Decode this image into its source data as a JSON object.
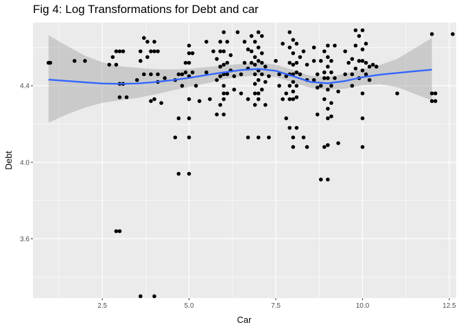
{
  "chart_data": {
    "type": "scatter",
    "title": "Fig 4: Log Transformations for Debt and car",
    "xlabel": "Car",
    "ylabel": "Debt",
    "xlim": [
      0.5,
      12.7
    ],
    "ylim": [
      3.29,
      4.73
    ],
    "x_ticks": [
      2.5,
      5.0,
      7.5,
      10.0,
      12.5
    ],
    "x_tick_labels": [
      "2.5",
      "5.0",
      "7.5",
      "10.0",
      "12.5"
    ],
    "y_ticks": [
      3.6,
      4.0,
      4.4
    ],
    "y_tick_labels": [
      "3.6",
      "4.0",
      "4.4"
    ],
    "grid": true,
    "background": "#ebebeb",
    "point_color": "#000000",
    "smooth_color": "#3366ff",
    "band_color": "#999999",
    "points": [
      [
        0.95,
        4.52
      ],
      [
        1.0,
        4.52
      ],
      [
        1.7,
        4.53
      ],
      [
        2.0,
        4.53
      ],
      [
        2.7,
        4.51
      ],
      [
        2.8,
        4.55
      ],
      [
        2.9,
        4.58
      ],
      [
        2.9,
        4.51
      ],
      [
        2.9,
        3.64
      ],
      [
        3.0,
        3.64
      ],
      [
        3.0,
        4.58
      ],
      [
        3.0,
        4.41
      ],
      [
        3.0,
        4.34
      ],
      [
        3.1,
        4.58
      ],
      [
        3.1,
        4.41
      ],
      [
        3.2,
        4.34
      ],
      [
        3.5,
        4.43
      ],
      [
        3.6,
        4.53
      ],
      [
        3.6,
        4.58
      ],
      [
        3.6,
        3.3
      ],
      [
        3.7,
        4.65
      ],
      [
        3.7,
        4.46
      ],
      [
        3.8,
        4.55
      ],
      [
        3.8,
        4.63
      ],
      [
        3.9,
        4.46
      ],
      [
        3.9,
        4.58
      ],
      [
        3.9,
        4.32
      ],
      [
        4.0,
        4.58
      ],
      [
        4.0,
        4.33
      ],
      [
        4.0,
        4.63
      ],
      [
        4.0,
        3.3
      ],
      [
        4.1,
        4.58
      ],
      [
        4.1,
        4.46
      ],
      [
        4.1,
        4.42
      ],
      [
        4.2,
        4.31
      ],
      [
        4.3,
        4.44
      ],
      [
        4.6,
        4.43
      ],
      [
        4.6,
        4.13
      ],
      [
        4.7,
        4.23
      ],
      [
        4.7,
        3.94
      ],
      [
        4.7,
        4.46
      ],
      [
        4.8,
        4.46
      ],
      [
        4.8,
        4.4
      ],
      [
        4.9,
        4.47
      ],
      [
        4.9,
        4.52
      ],
      [
        5.0,
        4.57
      ],
      [
        5.0,
        4.61
      ],
      [
        5.0,
        4.52
      ],
      [
        5.0,
        4.45
      ],
      [
        5.0,
        4.33
      ],
      [
        5.0,
        4.23
      ],
      [
        5.0,
        4.13
      ],
      [
        5.0,
        3.94
      ],
      [
        5.1,
        4.57
      ],
      [
        5.1,
        4.47
      ],
      [
        5.2,
        4.4
      ],
      [
        5.3,
        4.32
      ],
      [
        5.5,
        4.63
      ],
      [
        5.5,
        4.47
      ],
      [
        5.6,
        4.33
      ],
      [
        5.7,
        4.58
      ],
      [
        5.8,
        4.54
      ],
      [
        5.8,
        4.43
      ],
      [
        5.8,
        4.25
      ],
      [
        5.9,
        4.63
      ],
      [
        5.9,
        4.58
      ],
      [
        5.9,
        4.5
      ],
      [
        5.9,
        4.45
      ],
      [
        5.9,
        4.3
      ],
      [
        6.0,
        4.68
      ],
      [
        6.0,
        4.58
      ],
      [
        6.0,
        4.51
      ],
      [
        6.0,
        4.46
      ],
      [
        6.0,
        4.4
      ],
      [
        6.0,
        4.36
      ],
      [
        6.0,
        4.33
      ],
      [
        6.0,
        4.25
      ],
      [
        6.1,
        4.63
      ],
      [
        6.1,
        4.52
      ],
      [
        6.1,
        4.46
      ],
      [
        6.1,
        4.36
      ],
      [
        6.2,
        4.56
      ],
      [
        6.2,
        4.48
      ],
      [
        6.3,
        4.45
      ],
      [
        6.3,
        4.38
      ],
      [
        6.4,
        4.68
      ],
      [
        6.5,
        4.46
      ],
      [
        6.5,
        4.36
      ],
      [
        6.6,
        4.63
      ],
      [
        6.6,
        4.52
      ],
      [
        6.7,
        4.59
      ],
      [
        6.7,
        4.49
      ],
      [
        6.7,
        4.33
      ],
      [
        6.7,
        4.13
      ],
      [
        6.8,
        4.66
      ],
      [
        6.8,
        4.58
      ],
      [
        6.8,
        4.52
      ],
      [
        6.9,
        4.63
      ],
      [
        6.9,
        4.55
      ],
      [
        6.9,
        4.51
      ],
      [
        6.9,
        4.46
      ],
      [
        6.9,
        4.41
      ],
      [
        6.9,
        4.36
      ],
      [
        6.9,
        4.3
      ],
      [
        7.0,
        4.68
      ],
      [
        7.0,
        4.6
      ],
      [
        7.0,
        4.53
      ],
      [
        7.0,
        4.48
      ],
      [
        7.0,
        4.43
      ],
      [
        7.0,
        4.36
      ],
      [
        7.0,
        4.33
      ],
      [
        7.0,
        4.13
      ],
      [
        7.1,
        4.66
      ],
      [
        7.1,
        4.57
      ],
      [
        7.1,
        4.52
      ],
      [
        7.1,
        4.46
      ],
      [
        7.1,
        4.38
      ],
      [
        7.2,
        4.5
      ],
      [
        7.2,
        4.42
      ],
      [
        7.2,
        4.3
      ],
      [
        7.3,
        4.45
      ],
      [
        7.3,
        4.13
      ],
      [
        7.5,
        4.53
      ],
      [
        7.6,
        4.46
      ],
      [
        7.6,
        4.4
      ],
      [
        7.7,
        4.62
      ],
      [
        7.7,
        4.33
      ],
      [
        7.8,
        4.45
      ],
      [
        7.8,
        4.36
      ],
      [
        7.8,
        4.23
      ],
      [
        7.9,
        4.68
      ],
      [
        7.9,
        4.6
      ],
      [
        7.9,
        4.52
      ],
      [
        7.9,
        4.46
      ],
      [
        7.9,
        4.4
      ],
      [
        7.9,
        4.33
      ],
      [
        7.9,
        4.18
      ],
      [
        8.0,
        4.64
      ],
      [
        8.0,
        4.57
      ],
      [
        8.0,
        4.51
      ],
      [
        8.0,
        4.46
      ],
      [
        8.0,
        4.42
      ],
      [
        8.0,
        4.37
      ],
      [
        8.0,
        4.33
      ],
      [
        8.0,
        4.13
      ],
      [
        8.0,
        4.08
      ],
      [
        8.1,
        4.62
      ],
      [
        8.1,
        4.52
      ],
      [
        8.1,
        4.47
      ],
      [
        8.1,
        4.4
      ],
      [
        8.1,
        4.34
      ],
      [
        8.1,
        4.18
      ],
      [
        8.2,
        4.55
      ],
      [
        8.2,
        4.46
      ],
      [
        8.3,
        4.58
      ],
      [
        8.3,
        4.13
      ],
      [
        8.4,
        4.51
      ],
      [
        8.4,
        4.43
      ],
      [
        8.4,
        4.08
      ],
      [
        8.6,
        4.6
      ],
      [
        8.6,
        4.53
      ],
      [
        8.6,
        4.43
      ],
      [
        8.7,
        4.46
      ],
      [
        8.7,
        4.39
      ],
      [
        8.7,
        4.25
      ],
      [
        8.8,
        4.53
      ],
      [
        8.8,
        4.4
      ],
      [
        8.8,
        3.91
      ],
      [
        8.9,
        4.58
      ],
      [
        8.9,
        4.47
      ],
      [
        8.9,
        4.44
      ],
      [
        8.9,
        4.33
      ],
      [
        8.9,
        4.08
      ],
      [
        9.0,
        4.61
      ],
      [
        9.0,
        4.55
      ],
      [
        9.0,
        4.5
      ],
      [
        9.0,
        4.44
      ],
      [
        9.0,
        4.38
      ],
      [
        9.0,
        4.28
      ],
      [
        9.0,
        4.23
      ],
      [
        9.0,
        4.09
      ],
      [
        9.0,
        3.91
      ],
      [
        9.1,
        4.53
      ],
      [
        9.1,
        4.47
      ],
      [
        9.1,
        4.4
      ],
      [
        9.1,
        4.31
      ],
      [
        9.1,
        4.24
      ],
      [
        9.2,
        4.61
      ],
      [
        9.2,
        4.44
      ],
      [
        9.3,
        4.37
      ],
      [
        9.3,
        4.1
      ],
      [
        9.5,
        4.58
      ],
      [
        9.5,
        4.46
      ],
      [
        9.6,
        4.52
      ],
      [
        9.7,
        4.54
      ],
      [
        9.7,
        4.46
      ],
      [
        9.7,
        4.4
      ],
      [
        9.8,
        4.69
      ],
      [
        9.8,
        4.61
      ],
      [
        9.8,
        4.49
      ],
      [
        9.9,
        4.66
      ],
      [
        9.9,
        4.53
      ],
      [
        9.9,
        4.44
      ],
      [
        10.0,
        4.69
      ],
      [
        10.0,
        4.59
      ],
      [
        10.0,
        4.53
      ],
      [
        10.0,
        4.48
      ],
      [
        10.0,
        4.36
      ],
      [
        10.0,
        4.23
      ],
      [
        10.0,
        4.08
      ],
      [
        10.1,
        4.62
      ],
      [
        10.1,
        4.52
      ],
      [
        10.1,
        4.46
      ],
      [
        10.2,
        4.5
      ],
      [
        10.2,
        4.43
      ],
      [
        10.3,
        4.51
      ],
      [
        10.4,
        4.5
      ],
      [
        11.0,
        4.36
      ],
      [
        12.0,
        4.67
      ],
      [
        12.0,
        4.36
      ],
      [
        12.0,
        4.32
      ],
      [
        12.1,
        4.36
      ],
      [
        12.1,
        4.32
      ],
      [
        12.6,
        4.67
      ]
    ],
    "smooth_line": [
      [
        0.95,
        4.432
      ],
      [
        1.5,
        4.425
      ],
      [
        2.0,
        4.418
      ],
      [
        2.5,
        4.412
      ],
      [
        3.0,
        4.41
      ],
      [
        3.5,
        4.412
      ],
      [
        4.0,
        4.419
      ],
      [
        4.5,
        4.429
      ],
      [
        5.0,
        4.441
      ],
      [
        5.5,
        4.456
      ],
      [
        6.0,
        4.47
      ],
      [
        6.5,
        4.482
      ],
      [
        7.0,
        4.488
      ],
      [
        7.5,
        4.478
      ],
      [
        8.0,
        4.45
      ],
      [
        8.5,
        4.42
      ],
      [
        9.0,
        4.413
      ],
      [
        9.5,
        4.425
      ],
      [
        10.0,
        4.445
      ],
      [
        10.5,
        4.458
      ],
      [
        11.0,
        4.467
      ],
      [
        11.5,
        4.476
      ],
      [
        12.0,
        4.484
      ]
    ],
    "band_upper": [
      [
        0.95,
        4.664
      ],
      [
        1.5,
        4.606
      ],
      [
        2.0,
        4.557
      ],
      [
        2.5,
        4.523
      ],
      [
        3.0,
        4.502
      ],
      [
        3.5,
        4.494
      ],
      [
        4.0,
        4.487
      ],
      [
        4.5,
        4.485
      ],
      [
        5.0,
        4.489
      ],
      [
        5.5,
        4.497
      ],
      [
        6.0,
        4.506
      ],
      [
        6.5,
        4.514
      ],
      [
        7.0,
        4.521
      ],
      [
        7.5,
        4.51
      ],
      [
        8.0,
        4.482
      ],
      [
        8.5,
        4.452
      ],
      [
        9.0,
        4.446
      ],
      [
        9.5,
        4.463
      ],
      [
        10.0,
        4.487
      ],
      [
        10.5,
        4.509
      ],
      [
        11.0,
        4.54
      ],
      [
        11.5,
        4.595
      ],
      [
        12.0,
        4.65
      ]
    ],
    "band_lower": [
      [
        0.95,
        4.207
      ],
      [
        1.5,
        4.252
      ],
      [
        2.0,
        4.286
      ],
      [
        2.5,
        4.311
      ],
      [
        3.0,
        4.324
      ],
      [
        3.5,
        4.336
      ],
      [
        4.0,
        4.354
      ],
      [
        4.5,
        4.375
      ],
      [
        5.0,
        4.394
      ],
      [
        5.5,
        4.413
      ],
      [
        6.0,
        4.434
      ],
      [
        6.5,
        4.447
      ],
      [
        7.0,
        4.455
      ],
      [
        7.5,
        4.445
      ],
      [
        8.0,
        4.418
      ],
      [
        8.5,
        4.389
      ],
      [
        9.0,
        4.38
      ],
      [
        9.5,
        4.385
      ],
      [
        10.0,
        4.403
      ],
      [
        10.5,
        4.408
      ],
      [
        11.0,
        4.393
      ],
      [
        11.5,
        4.358
      ],
      [
        12.0,
        4.323
      ]
    ]
  }
}
